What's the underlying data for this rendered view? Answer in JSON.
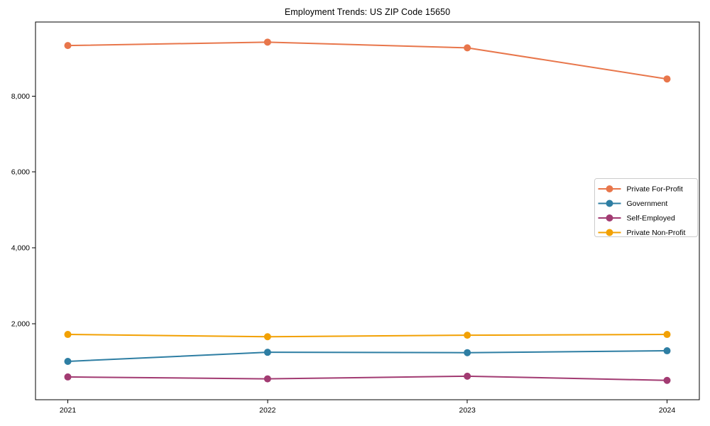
{
  "chart_data": {
    "type": "line",
    "title": "Employment Trends: US ZIP Code 15650",
    "x_categories": [
      "2021",
      "2022",
      "2023",
      "2024"
    ],
    "series": [
      {
        "name": "Private For-Profit",
        "color": "#E8764B",
        "values": [
          9330,
          9420,
          9270,
          8450
        ]
      },
      {
        "name": "Government",
        "color": "#2E7EA3",
        "values": [
          1010,
          1250,
          1240,
          1290
        ]
      },
      {
        "name": "Self-Employed",
        "color": "#A23B72",
        "values": [
          600,
          550,
          620,
          510
        ]
      },
      {
        "name": "Private Non-Profit",
        "color": "#F2A104",
        "values": [
          1720,
          1660,
          1700,
          1720
        ]
      }
    ],
    "xlabel": "",
    "ylabel": "",
    "ylim": [
      0,
      9950
    ],
    "y_ticks": [
      2000,
      4000,
      6000,
      8000
    ],
    "y_tick_labels": [
      "2,000",
      "4,000",
      "6,000",
      "8,000"
    ],
    "grid": false,
    "legend_position": "center right",
    "marker": "circle",
    "line_width": 2,
    "marker_radius": 5,
    "axis_color": "#000000",
    "legend_border_color": "#cccccc",
    "background_color": "#ffffff"
  }
}
